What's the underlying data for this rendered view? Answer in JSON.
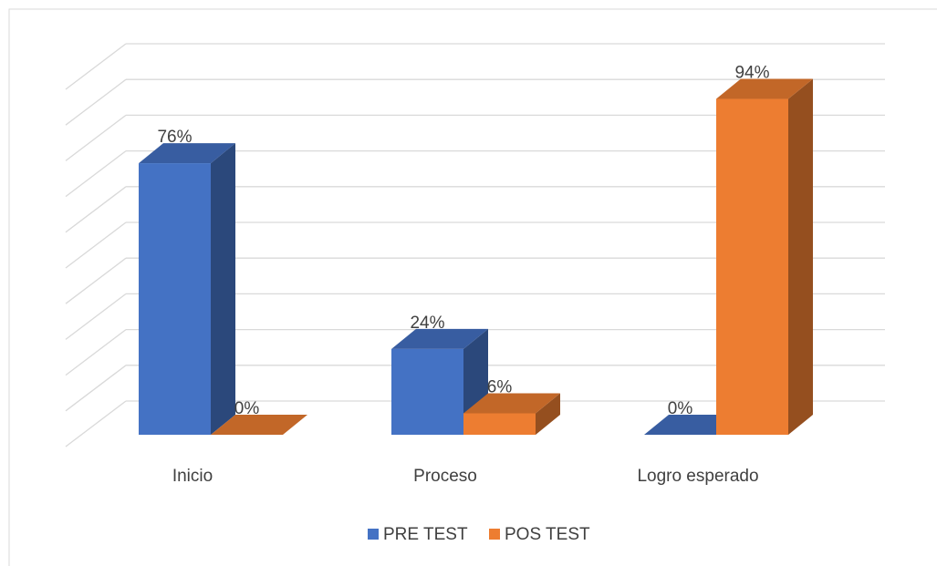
{
  "chart_data": {
    "type": "bar3d",
    "categories": [
      "Inicio",
      "Proceso",
      "Logro esperado"
    ],
    "series": [
      {
        "name": "PRE TEST",
        "color": "#4472c4",
        "values": [
          76,
          24,
          0
        ],
        "value_labels": [
          "76%",
          "24%",
          "0%"
        ]
      },
      {
        "name": "POS TEST",
        "color": "#ed7d31",
        "values": [
          0,
          6,
          94
        ],
        "value_labels": [
          "0%",
          "6%",
          "94%"
        ]
      }
    ],
    "ylim": [
      0,
      100
    ],
    "yticks": [
      0,
      10,
      20,
      30,
      40,
      50,
      60,
      70,
      80,
      90,
      100
    ],
    "grid": true,
    "legend": "bottom"
  }
}
